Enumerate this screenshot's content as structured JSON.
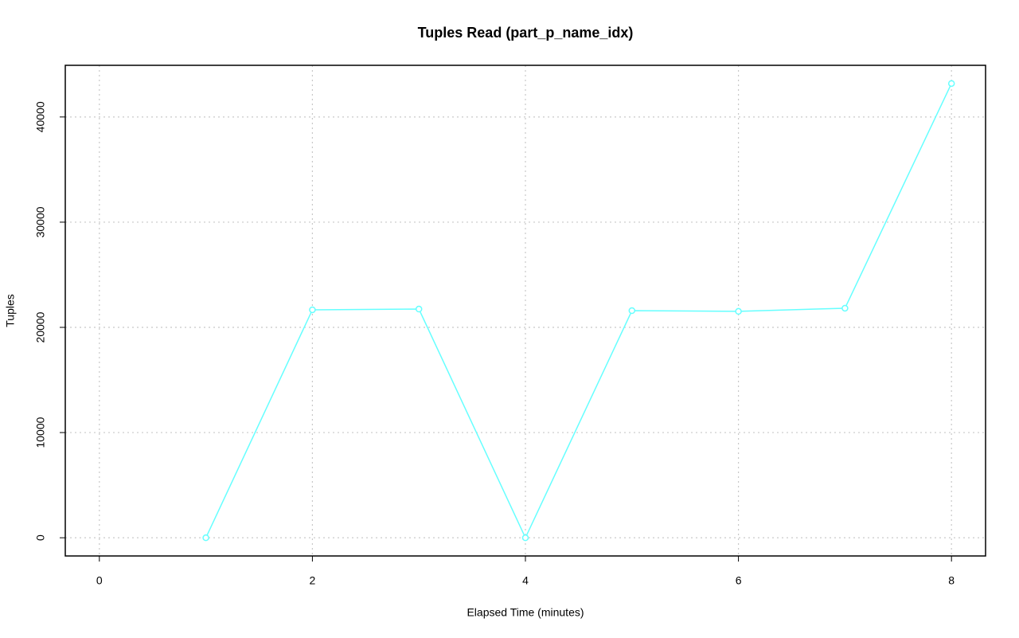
{
  "chart_data": {
    "type": "line",
    "title": "Tuples Read (part_p_name_idx)",
    "x_label": "Elapsed Time (minutes)",
    "y_label": "Tuples",
    "x": [
      1,
      2,
      3,
      4,
      5,
      6,
      7,
      8
    ],
    "series": [
      {
        "name": "part_p_name_idx",
        "color": "#66ffff",
        "values": [
          0,
          21670,
          21740,
          0,
          21590,
          21520,
          21820,
          43180
        ]
      }
    ],
    "xlim": [
      -0.32,
      8.32
    ],
    "xticks": [
      0,
      2,
      4,
      6,
      8
    ],
    "ylim": [
      -1730,
      44910
    ],
    "yticks": [
      0,
      10000,
      20000,
      30000,
      40000
    ],
    "grid": true
  }
}
